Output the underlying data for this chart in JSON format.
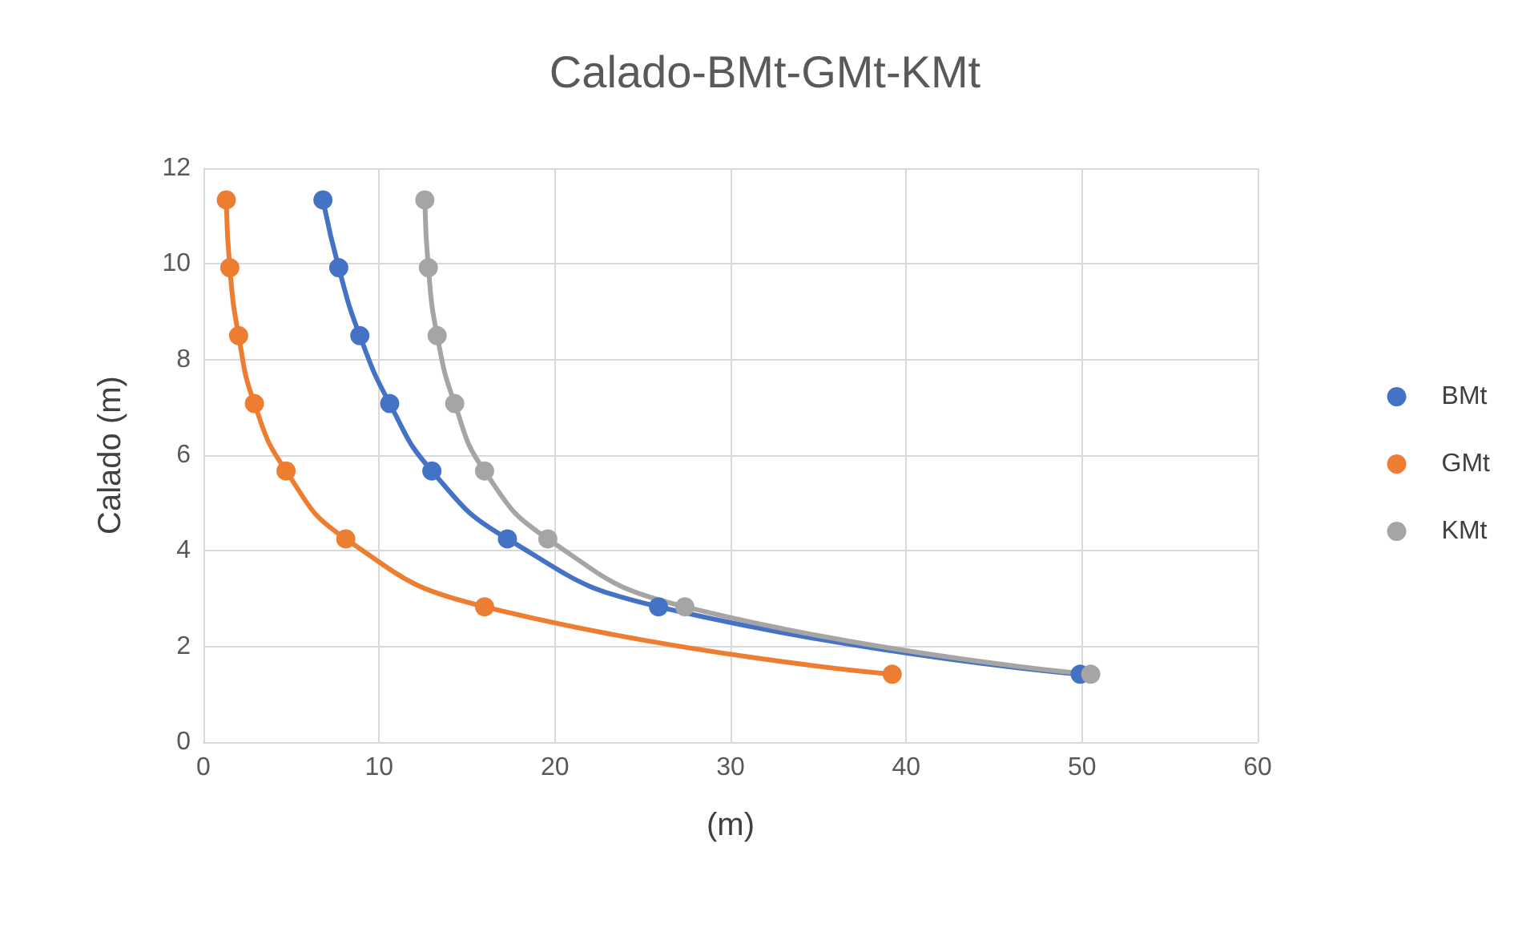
{
  "chart_data": {
    "type": "line",
    "title": "Calado-BMt-GMt-KMt",
    "xlabel": "(m)",
    "ylabel": "Calado (m)",
    "xlim": [
      0,
      60
    ],
    "xticks": [
      0,
      10,
      20,
      30,
      40,
      50,
      60
    ],
    "ylim": [
      0,
      12
    ],
    "yticks": [
      0,
      2,
      4,
      6,
      8,
      10,
      12
    ],
    "grid": true,
    "legend": "right",
    "marker": "circle",
    "line_style": "solid",
    "series": [
      {
        "name": "BMt",
        "color": "#4472c4",
        "x": [
          49.9,
          25.9,
          17.3,
          13.0,
          10.6,
          8.9,
          7.7,
          6.8
        ],
        "values": [
          1.42,
          2.83,
          4.25,
          5.67,
          7.08,
          8.5,
          9.92,
          11.34
        ]
      },
      {
        "name": "GMt",
        "color": "#ed7d31",
        "x": [
          39.2,
          16.0,
          8.1,
          4.7,
          2.9,
          2.0,
          1.5,
          1.3
        ],
        "values": [
          1.42,
          2.83,
          4.25,
          5.67,
          7.08,
          8.5,
          9.92,
          11.34
        ]
      },
      {
        "name": "KMt",
        "color": "#a5a5a5",
        "x": [
          50.5,
          27.4,
          19.6,
          16.0,
          14.3,
          13.3,
          12.8,
          12.6
        ],
        "values": [
          1.42,
          2.83,
          4.25,
          5.67,
          7.08,
          8.5,
          9.92,
          11.34
        ]
      }
    ]
  }
}
